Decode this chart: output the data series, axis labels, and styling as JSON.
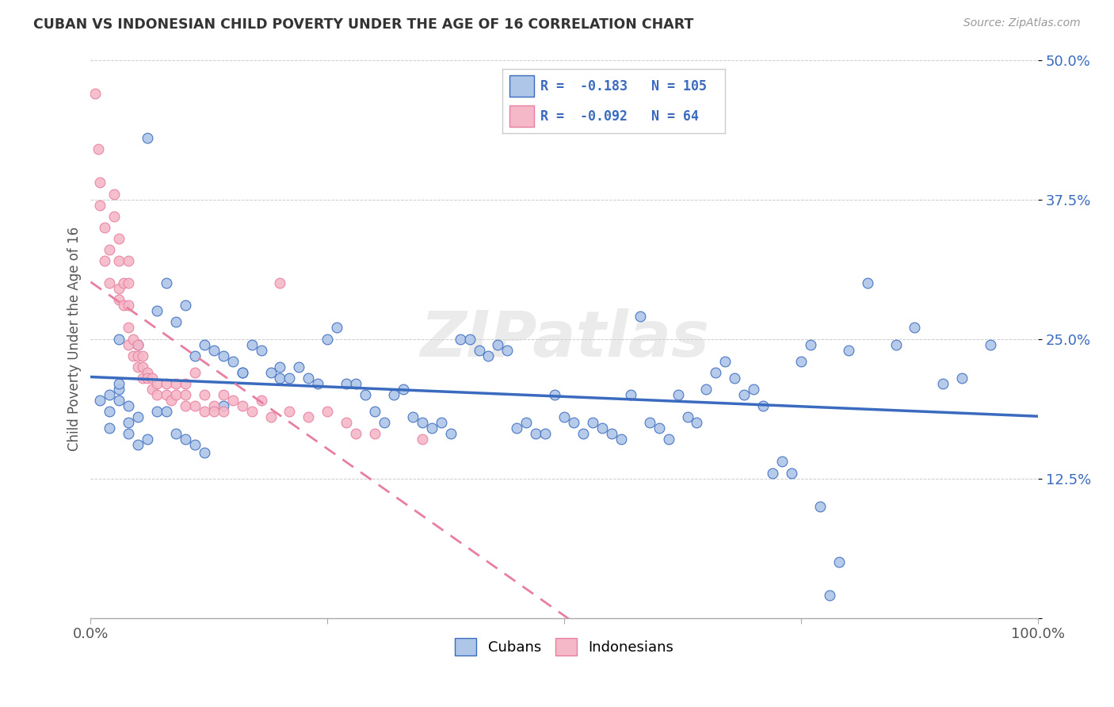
{
  "title": "CUBAN VS INDONESIAN CHILD POVERTY UNDER THE AGE OF 16 CORRELATION CHART",
  "source": "Source: ZipAtlas.com",
  "ylabel": "Child Poverty Under the Age of 16",
  "xlim": [
    0.0,
    1.0
  ],
  "ylim": [
    0.0,
    0.5
  ],
  "yticks": [
    0.0,
    0.125,
    0.25,
    0.375,
    0.5
  ],
  "ytick_labels": [
    "",
    "12.5%",
    "25.0%",
    "37.5%",
    "50.0%"
  ],
  "xticks": [
    0.0,
    0.25,
    0.5,
    0.75,
    1.0
  ],
  "xtick_labels": [
    "0.0%",
    "",
    "",
    "",
    "100.0%"
  ],
  "legend_labels": [
    "Cubans",
    "Indonesians"
  ],
  "cuban_color": "#aec6e8",
  "indonesian_color": "#f4b8c8",
  "cuban_line_color": "#3a6bbf",
  "indonesian_line_color": "#e87fa0",
  "cuban_R": -0.183,
  "cuban_N": 105,
  "indonesian_R": -0.092,
  "indonesian_N": 64,
  "watermark": "ZIPatlas",
  "background_color": "#ffffff",
  "cubans_x": [
    0.02,
    0.03,
    0.04,
    0.05,
    0.02,
    0.03,
    0.04,
    0.01,
    0.02,
    0.03,
    0.06,
    0.07,
    0.05,
    0.08,
    0.09,
    0.1,
    0.11,
    0.12,
    0.13,
    0.14,
    0.15,
    0.16,
    0.17,
    0.18,
    0.19,
    0.2,
    0.2,
    0.21,
    0.22,
    0.23,
    0.24,
    0.25,
    0.26,
    0.27,
    0.28,
    0.29,
    0.3,
    0.31,
    0.32,
    0.33,
    0.34,
    0.35,
    0.36,
    0.37,
    0.38,
    0.39,
    0.4,
    0.41,
    0.42,
    0.43,
    0.44,
    0.45,
    0.46,
    0.47,
    0.48,
    0.49,
    0.5,
    0.51,
    0.52,
    0.53,
    0.54,
    0.55,
    0.56,
    0.57,
    0.58,
    0.59,
    0.6,
    0.61,
    0.62,
    0.63,
    0.64,
    0.65,
    0.66,
    0.67,
    0.68,
    0.69,
    0.7,
    0.71,
    0.72,
    0.73,
    0.74,
    0.75,
    0.76,
    0.77,
    0.78,
    0.79,
    0.8,
    0.82,
    0.85,
    0.87,
    0.9,
    0.92,
    0.95,
    0.03,
    0.04,
    0.05,
    0.06,
    0.07,
    0.08,
    0.09,
    0.1,
    0.11,
    0.12,
    0.14,
    0.16
  ],
  "cubans_y": [
    0.2,
    0.205,
    0.19,
    0.18,
    0.17,
    0.21,
    0.175,
    0.195,
    0.185,
    0.25,
    0.43,
    0.275,
    0.245,
    0.3,
    0.265,
    0.28,
    0.235,
    0.245,
    0.24,
    0.235,
    0.23,
    0.22,
    0.245,
    0.24,
    0.22,
    0.215,
    0.225,
    0.215,
    0.225,
    0.215,
    0.21,
    0.25,
    0.26,
    0.21,
    0.21,
    0.2,
    0.185,
    0.175,
    0.2,
    0.205,
    0.18,
    0.175,
    0.17,
    0.175,
    0.165,
    0.25,
    0.25,
    0.24,
    0.235,
    0.245,
    0.24,
    0.17,
    0.175,
    0.165,
    0.165,
    0.2,
    0.18,
    0.175,
    0.165,
    0.175,
    0.17,
    0.165,
    0.16,
    0.2,
    0.27,
    0.175,
    0.17,
    0.16,
    0.2,
    0.18,
    0.175,
    0.205,
    0.22,
    0.23,
    0.215,
    0.2,
    0.205,
    0.19,
    0.13,
    0.14,
    0.13,
    0.23,
    0.245,
    0.1,
    0.02,
    0.05,
    0.24,
    0.3,
    0.245,
    0.26,
    0.21,
    0.215,
    0.245,
    0.195,
    0.165,
    0.155,
    0.16,
    0.185,
    0.185,
    0.165,
    0.16,
    0.155,
    0.148,
    0.19,
    0.22
  ],
  "indonesians_x": [
    0.005,
    0.008,
    0.01,
    0.01,
    0.015,
    0.015,
    0.02,
    0.02,
    0.025,
    0.025,
    0.03,
    0.03,
    0.03,
    0.03,
    0.035,
    0.035,
    0.04,
    0.04,
    0.04,
    0.04,
    0.04,
    0.045,
    0.045,
    0.05,
    0.05,
    0.05,
    0.055,
    0.055,
    0.055,
    0.06,
    0.06,
    0.065,
    0.065,
    0.07,
    0.07,
    0.08,
    0.08,
    0.085,
    0.09,
    0.09,
    0.1,
    0.1,
    0.1,
    0.11,
    0.11,
    0.12,
    0.12,
    0.13,
    0.13,
    0.14,
    0.14,
    0.15,
    0.16,
    0.17,
    0.18,
    0.19,
    0.2,
    0.21,
    0.23,
    0.25,
    0.27,
    0.28,
    0.3,
    0.35
  ],
  "indonesians_y": [
    0.47,
    0.42,
    0.39,
    0.37,
    0.35,
    0.32,
    0.33,
    0.3,
    0.38,
    0.36,
    0.34,
    0.32,
    0.295,
    0.285,
    0.3,
    0.28,
    0.32,
    0.3,
    0.28,
    0.26,
    0.245,
    0.25,
    0.235,
    0.245,
    0.235,
    0.225,
    0.235,
    0.225,
    0.215,
    0.22,
    0.215,
    0.215,
    0.205,
    0.21,
    0.2,
    0.21,
    0.2,
    0.195,
    0.21,
    0.2,
    0.21,
    0.2,
    0.19,
    0.22,
    0.19,
    0.2,
    0.185,
    0.19,
    0.185,
    0.2,
    0.185,
    0.195,
    0.19,
    0.185,
    0.195,
    0.18,
    0.3,
    0.185,
    0.18,
    0.185,
    0.175,
    0.165,
    0.165,
    0.16
  ]
}
